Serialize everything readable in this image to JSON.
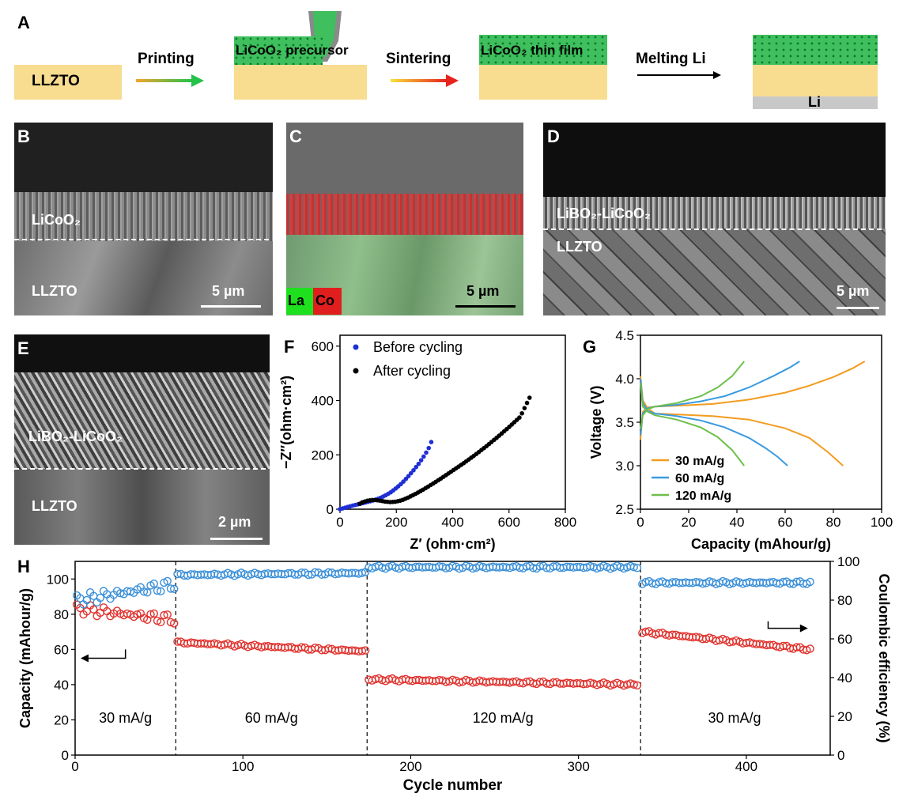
{
  "panelA": {
    "label": "A",
    "llzto": "LLZTO",
    "printing": "Printing",
    "precursor": "LiCoO₂ precursor",
    "sintering": "Sintering",
    "thinfilm": "LiCoO₂ thin film",
    "melting": "Melting Li",
    "li": "Li"
  },
  "panelB": {
    "label": "B",
    "top": "LiCoO₂",
    "bottom": "LLZTO",
    "scale": "5 µm"
  },
  "panelC": {
    "label": "C",
    "la": "La",
    "co": "Co",
    "scale": "5 µm"
  },
  "panelD": {
    "label": "D",
    "top": "LiBO₂-LiCoO₂",
    "bottom": "LLZTO",
    "scale": "5 µm"
  },
  "panelE": {
    "label": "E",
    "top": "LiBO₂-LiCoO₂",
    "bottom": "LLZTO",
    "scale": "2 µm"
  },
  "chart_data": [
    {
      "type": "scatter",
      "panel": "F",
      "xlabel": "Z′ (ohm·cm²)",
      "ylabel": "−Z″(ohm·cm²)",
      "xlim": [
        0,
        800
      ],
      "ylim": [
        0,
        640
      ],
      "xticks": [
        0,
        200,
        400,
        600,
        800
      ],
      "yticks": [
        0,
        200,
        400,
        600
      ],
      "legend": "top-left",
      "series": [
        {
          "name": "Before cycling",
          "color": "#1f2fd6",
          "x": [
            0,
            20,
            40,
            60,
            80,
            100,
            120,
            140,
            160,
            180,
            200,
            220,
            240,
            260,
            280,
            300,
            310,
            320,
            325
          ],
          "y": [
            0,
            6,
            12,
            17,
            22,
            27,
            33,
            40,
            50,
            62,
            78,
            96,
            118,
            142,
            168,
            198,
            215,
            235,
            250
          ]
        },
        {
          "name": "After cycling",
          "color": "#000000",
          "x": [
            70,
            80,
            100,
            120,
            140,
            160,
            180,
            200,
            220,
            240,
            260,
            280,
            300,
            330,
            360,
            400,
            440,
            480,
            520,
            560,
            600,
            640,
            680
          ],
          "y": [
            20,
            26,
            32,
            34,
            32,
            28,
            26,
            28,
            33,
            42,
            52,
            63,
            75,
            94,
            114,
            142,
            170,
            200,
            232,
            266,
            302,
            340,
            425
          ]
        }
      ]
    },
    {
      "type": "line",
      "panel": "G",
      "xlabel": "Capacity (mAhour/g)",
      "ylabel": "Voltage (V)",
      "xlim": [
        0,
        100
      ],
      "ylim": [
        2.5,
        4.5
      ],
      "xticks": [
        0,
        20,
        40,
        60,
        80,
        100
      ],
      "yticks": [
        2.5,
        3.0,
        3.5,
        4.0,
        4.5
      ],
      "legend": "bottom-left",
      "series": [
        {
          "name": "30 mA/g",
          "color": "#f39c1f",
          "charge_x": [
            0,
            1,
            3,
            6,
            15,
            30,
            45,
            60,
            70,
            80,
            88,
            93
          ],
          "charge_y": [
            3.3,
            3.62,
            3.67,
            3.68,
            3.69,
            3.71,
            3.76,
            3.84,
            3.92,
            4.02,
            4.12,
            4.2
          ],
          "discharge_x": [
            0,
            1,
            3,
            6,
            15,
            30,
            45,
            60,
            70,
            78,
            84
          ],
          "discharge_y": [
            4.03,
            3.75,
            3.66,
            3.6,
            3.59,
            3.57,
            3.53,
            3.43,
            3.32,
            3.15,
            3.0
          ]
        },
        {
          "name": "60 mA/g",
          "color": "#3a9be0",
          "charge_x": [
            0,
            1,
            3,
            6,
            15,
            25,
            35,
            45,
            55,
            62,
            66
          ],
          "charge_y": [
            3.35,
            3.6,
            3.66,
            3.68,
            3.7,
            3.74,
            3.8,
            3.9,
            4.03,
            4.13,
            4.2
          ],
          "discharge_x": [
            0,
            1,
            3,
            6,
            15,
            25,
            35,
            45,
            52,
            57,
            61
          ],
          "discharge_y": [
            4.0,
            3.72,
            3.63,
            3.6,
            3.57,
            3.52,
            3.44,
            3.32,
            3.2,
            3.1,
            3.0
          ]
        },
        {
          "name": "120 mA/g",
          "color": "#6cc04a",
          "charge_x": [
            0,
            1,
            3,
            6,
            15,
            25,
            32,
            38,
            43
          ],
          "charge_y": [
            3.42,
            3.58,
            3.65,
            3.68,
            3.72,
            3.8,
            3.9,
            4.03,
            4.2
          ],
          "discharge_x": [
            0,
            1,
            3,
            6,
            15,
            25,
            32,
            38,
            43
          ],
          "discharge_y": [
            3.95,
            3.68,
            3.62,
            3.58,
            3.53,
            3.44,
            3.33,
            3.18,
            3.0
          ]
        }
      ]
    },
    {
      "type": "scatter",
      "panel": "H",
      "xlabel": "Cycle number",
      "ylabel": "Capacity (mAhour/g)",
      "y2label": "Coulombic efficiency (%)",
      "xlim": [
        0,
        450
      ],
      "ylim": [
        0,
        110
      ],
      "y2lim": [
        0,
        100
      ],
      "xticks": [
        0,
        100,
        200,
        300,
        400
      ],
      "yticks": [
        0,
        20,
        40,
        60,
        80,
        100
      ],
      "y2ticks": [
        0,
        20,
        40,
        60,
        80,
        100
      ],
      "dividers": [
        60,
        174,
        337
      ],
      "regions": [
        {
          "label": "30 mA/g",
          "x": 30
        },
        {
          "label": "60 mA/g",
          "x": 117
        },
        {
          "label": "120 mA/g",
          "x": 255
        },
        {
          "label": "30 mA/g",
          "x": 393
        }
      ],
      "series": [
        {
          "name": "Capacity",
          "axis": "left",
          "color": "#e0322d",
          "segments": [
            {
              "x_start": 1,
              "x_end": 59,
              "y_start": 83,
              "y_end": 77
            },
            {
              "x_start": 61,
              "x_end": 173,
              "y_start": 64,
              "y_end": 59
            },
            {
              "x_start": 175,
              "x_end": 336,
              "y_start": 43,
              "y_end": 40
            },
            {
              "x_start": 338,
              "x_end": 438,
              "y_start": 70,
              "y_end": 60
            }
          ]
        },
        {
          "name": "Coulombic efficiency",
          "axis": "right",
          "color": "#3a8fd8",
          "segments": [
            {
              "x_start": 1,
              "x_end": 59,
              "y_start": 80,
              "y_end": 88
            },
            {
              "x_start": 61,
              "x_end": 173,
              "y_start": 93,
              "y_end": 94
            },
            {
              "x_start": 175,
              "x_end": 336,
              "y_start": 97,
              "y_end": 97
            },
            {
              "x_start": 338,
              "x_end": 438,
              "y_start": 89,
              "y_end": 89
            }
          ]
        }
      ]
    }
  ]
}
